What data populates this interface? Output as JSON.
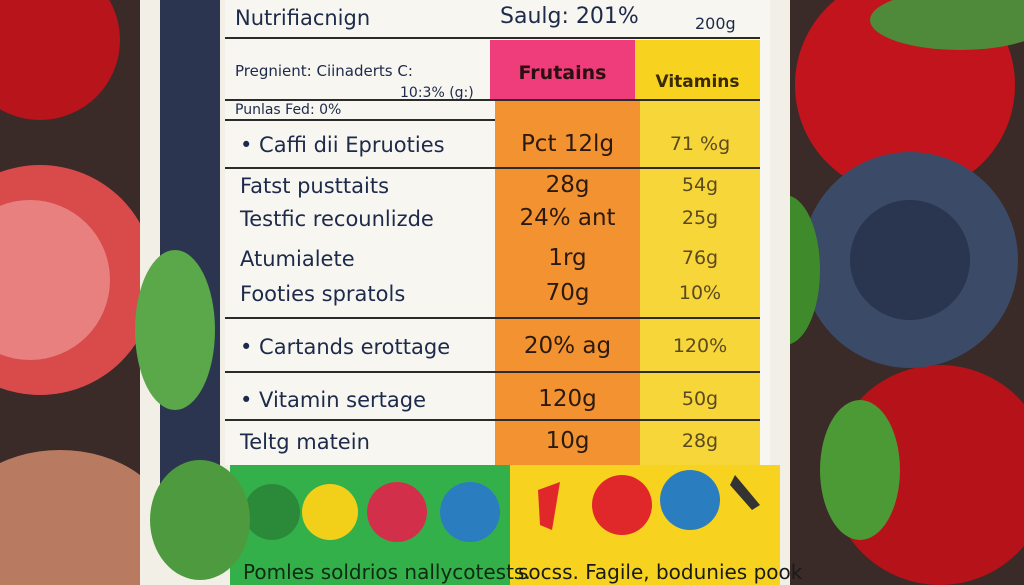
{
  "label": {
    "top": {
      "title": "Nutrifiacnign",
      "serving": "Saulg: 201%",
      "weight": "200g"
    },
    "subtitle": "Pregnient: Ciinaderts C:",
    "columns": [
      "Frutains",
      "Vitamins"
    ],
    "note": "Punlas Fed: 0%",
    "note_value": "10:3% (g:)",
    "rows": [
      {
        "name": "• Caffi dii Epruoties",
        "values": [
          "Pct 12lg",
          "71 %g"
        ]
      },
      {
        "name": "Fatst pusttaits",
        "values": [
          "28g",
          "54g"
        ]
      },
      {
        "name": "Testfic recounlizde",
        "values": [
          "24% ant",
          "25g"
        ]
      },
      {
        "name": "Atumialete",
        "values": [
          "1rg",
          "76g"
        ]
      },
      {
        "name": "Footies spratols",
        "values": [
          "70g",
          "10%"
        ]
      },
      {
        "name": "• Cartands erottage",
        "values": [
          "20% ag",
          "120%"
        ]
      },
      {
        "name": "• Vitamin sertage",
        "values": [
          "120g",
          "50g"
        ]
      },
      {
        "name": "Teltg matein",
        "values": [
          "10g",
          "28g"
        ]
      }
    ],
    "footer": [
      "Pomles soldrios nallycotests.",
      "socss. Fagile, bodunies pook"
    ]
  }
}
